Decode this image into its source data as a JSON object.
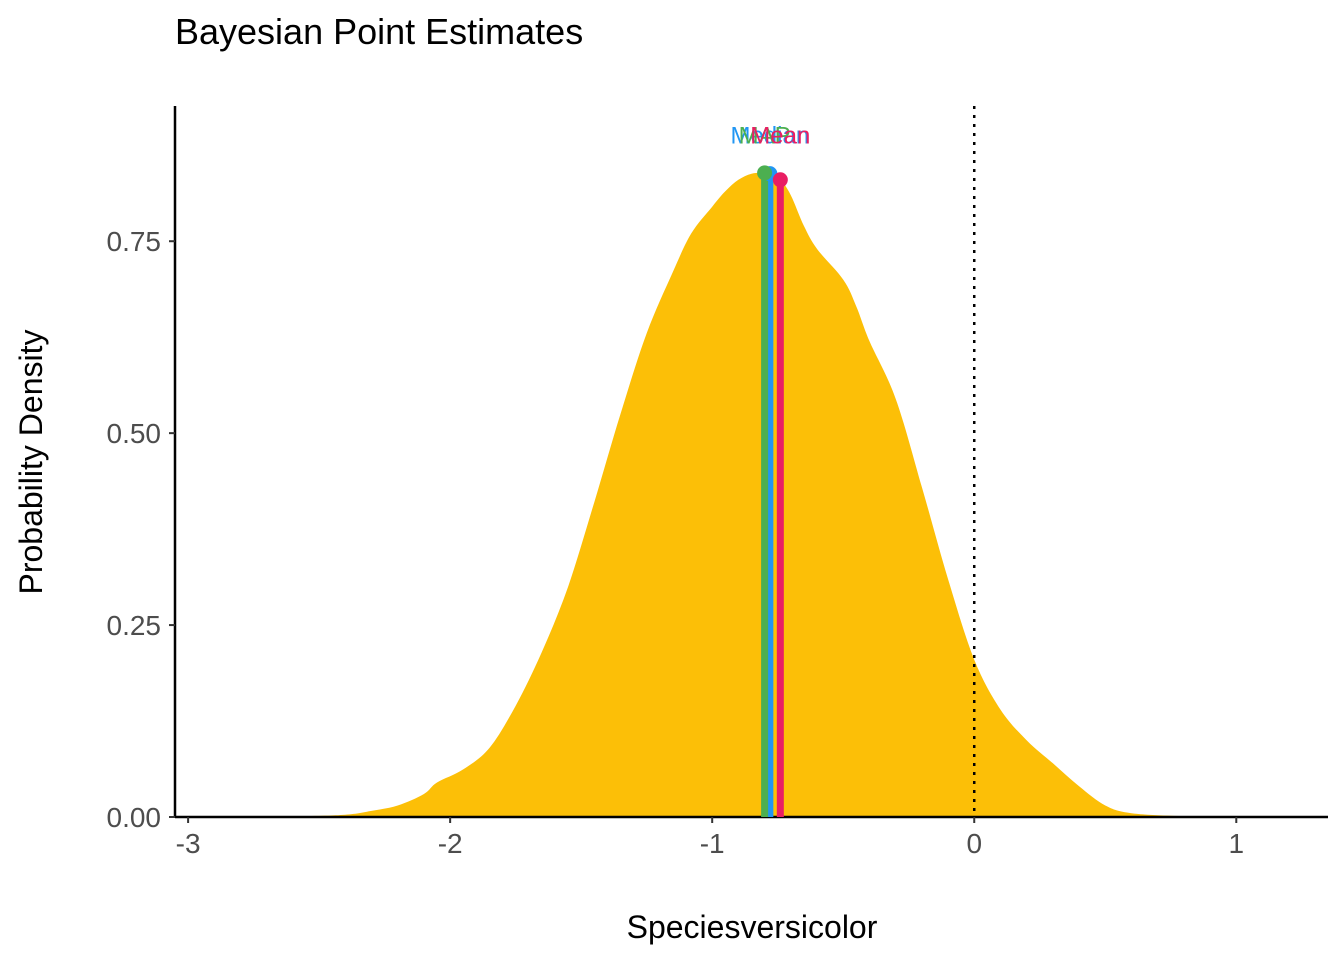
{
  "chart_data": {
    "type": "area",
    "title": "Bayesian Point Estimates",
    "xlabel": "Speciesversicolor",
    "ylabel": "Probability Density",
    "xlim": [
      -3.05,
      1.35
    ],
    "ylim": [
      0,
      0.96
    ],
    "x_ticks": [
      -3,
      -2,
      -1,
      0,
      1
    ],
    "x_tick_labels": [
      "-3",
      "-2",
      "-1",
      "0",
      "1"
    ],
    "y_ticks": [
      0,
      0.25,
      0.5,
      0.75
    ],
    "y_tick_labels": [
      "0.00",
      "0.25",
      "0.50",
      "0.75"
    ],
    "grid": false,
    "fill_color": "#FCBF07",
    "reference_line": {
      "x": 0,
      "style": "dotted",
      "color": "#000000"
    },
    "density": {
      "x": [
        -3.05,
        -2.6,
        -2.4,
        -2.3,
        -2.2,
        -2.1,
        -2.05,
        -1.95,
        -1.85,
        -1.75,
        -1.65,
        -1.55,
        -1.45,
        -1.35,
        -1.25,
        -1.15,
        -1.08,
        -1.0,
        -0.95,
        -0.9,
        -0.85,
        -0.8,
        -0.78,
        -0.74,
        -0.7,
        -0.65,
        -0.6,
        -0.5,
        -0.45,
        -0.4,
        -0.3,
        -0.2,
        -0.1,
        0.0,
        0.1,
        0.2,
        0.3,
        0.4,
        0.5,
        0.6,
        0.8,
        1.0,
        1.35
      ],
      "y": [
        0.0,
        0.001,
        0.003,
        0.008,
        0.015,
        0.03,
        0.045,
        0.062,
        0.09,
        0.145,
        0.215,
        0.3,
        0.41,
        0.525,
        0.63,
        0.71,
        0.76,
        0.795,
        0.815,
        0.83,
        0.838,
        0.839,
        0.838,
        0.83,
        0.81,
        0.77,
        0.74,
        0.7,
        0.665,
        0.62,
        0.545,
        0.43,
        0.31,
        0.205,
        0.14,
        0.1,
        0.07,
        0.04,
        0.015,
        0.005,
        0.001,
        0.0,
        0.0
      ]
    },
    "series": [
      {
        "name": "Median",
        "x": -0.78,
        "density": 0.838,
        "color": "#2196F3"
      },
      {
        "name": "MAP",
        "x": -0.8,
        "density": 0.839,
        "color": "#4CAF50"
      },
      {
        "name": "Mean",
        "x": -0.74,
        "density": 0.83,
        "color": "#E91E63"
      }
    ]
  }
}
